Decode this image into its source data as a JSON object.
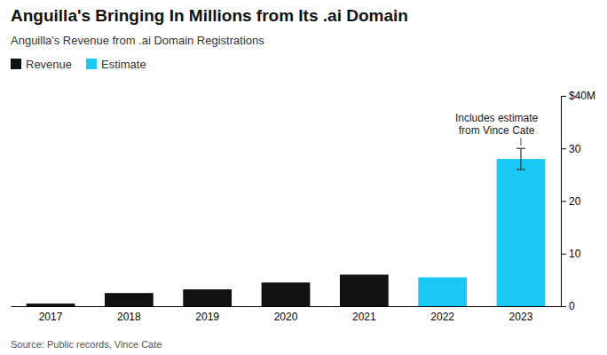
{
  "chart_data": {
    "type": "bar",
    "title": "Anguilla's Bringing In Millions from Its .ai Domain",
    "subtitle": "Anguilla's Revenue from .ai Domain Registrations",
    "source": "Source: Public records, Vince Cate",
    "annotation": "Includes estimate\nfrom Vince Cate",
    "categories": [
      "2017",
      "2018",
      "2019",
      "2020",
      "2021",
      "2022",
      "2023"
    ],
    "series": [
      {
        "name": "Revenue",
        "color": "#111111",
        "values": [
          0.5,
          2.5,
          3.2,
          4.5,
          6.0,
          null,
          null
        ]
      },
      {
        "name": "Estimate",
        "color": "#1BC8F5",
        "values": [
          null,
          null,
          null,
          null,
          null,
          5.5,
          28.0
        ],
        "error": [
          null,
          null,
          null,
          null,
          null,
          null,
          2.0
        ]
      }
    ],
    "ylim": [
      0,
      40
    ],
    "yticks": [
      0,
      10,
      20,
      30,
      {
        "value": 40,
        "label": "$40M"
      }
    ],
    "grid": false,
    "legend": "upper left"
  }
}
